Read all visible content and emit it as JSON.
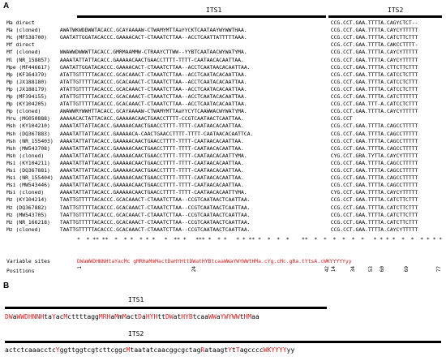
{
  "panel_a": {
    "label": "A",
    "its1_title": "ITS1",
    "its2_title": "ITS2",
    "rows": [
      {
        "name": "Ma direct",
        "its1": "",
        "its2": "CCG.CCT.GAA.TTTTA.CAGYCTCT--"
      },
      {
        "name": "Ma (cloned)",
        "its1": "AWATWKWDDWWTACACC.GCAYAAAAW-CTWAMYMTTAaYYCKTCAATAAYWYWWTHAA.",
        "its2": "CCG.CCT.GAA.TTTTA.CAYCYTTTTT"
      },
      {
        "name": "Mc (MF538700)",
        "its1": "GAATATTGGATACACCC.GAAAACACT-CTAAATCTTAA--ACCTCAATTATTTTTAAA.",
        "its2": "CCG.CCT.GAA.TTTTA.CATCTTCTTT"
      },
      {
        "name": "Mf direct",
        "its1": "",
        "its2": "CCG.CCT.GAA.TTTTA.CAKCCTTTT-"
      },
      {
        "name": "Mf (cloned)",
        "its1": "WWAWWDWWWTTACACC.GMRMAAMMW-CTRAAYCTTWW--YYBTCAATAACWYWATYMA.",
        "its2": "CCG.CCT.GAA.TTTTA.CAYCYTTTTT"
      },
      {
        "name": "Ml (NR_158857)",
        "its1": "AAAATATTATTACACC.GAAAAACAACTGAACCTTTT-TTTT-CAATAACACAATTAA.",
        "its2": "CCG.CCT.GAA.TTTTA.CAYCYTTTTT"
      },
      {
        "name": "Mpe (MF446617)",
        "its1": "GAATATTGGATACACCC.GAAAACACT-CTAAATCTTAA--ACCTCAATAACACAATTAA.",
        "its2": "CCG.CCT.GAA.TTTTA.CTTCTTCTTT"
      },
      {
        "name": "Mp (KF164379)",
        "its1": "ATATTGTTTTTACACCC.GCACAAACT-CTAAATCTTAA--ACCTCAATACACAATTAA.",
        "its2": "CCG.CCT.GAA.TTTTA.CATCCTCTTT"
      },
      {
        "name": "Mp (JX188180)",
        "its1": "ATATTGTTTTTACACCC.GCACAAACT-CTAAATCTTAA--ACCTCAATACACAATTAA.",
        "its2": "CCG.CCT.GAA.TTTTA.CATCCTCTTT"
      },
      {
        "name": "Mp (JX188179)",
        "its1": "ATATTGTTTTTACACCC.GCACAAACT-CTAAATCTTAA--ACCTCAATACACAATTAA.",
        "its2": "CCG.CCT.GAA.TTTTA.CATCCTCTTT"
      },
      {
        "name": "Mp (MF394155)",
        "its1": "ATATTGTTTTTACACCC.GCACAAACT-CTAAATCTTAA--ACCTCAATACACAATTAA.",
        "its2": "CCG.CCT.GAA.TTTTA.CATCTTTTTT"
      },
      {
        "name": "Mp (KY104205)",
        "its1": "ATATTGTTTTTACACCC.GCACAAACT-CTAAATCTTAA--ACCTCAATACACAATTAA.",
        "its2": "CCG.CCT.GAA.TTT-A.CATCCTCTTT"
      },
      {
        "name": "Mp (cloned)",
        "its1": "AWAWWRYWWHTTACACC.GCAYAAAAW-CTWAMYMTTAaYYCYTCAAWWACWYWATYMA.",
        "its2": "CCG.CCT.GAA.TTTTA.CAYCYTTTTT"
      },
      {
        "name": "Mru (MG050888)",
        "its1": "AAAAACACTATTACACC.GAAAAACAACTGAACCTTTT-CCGTCAATAACTCAATTAA.",
        "its2": "CCG.CCT"
      },
      {
        "name": "Msh (KY104210)",
        "its1": "AAAATATTATTACACC.GAAAAACAACTGAACCTTTT-TTTT-CAATAACACAATTAA.",
        "its2": "CCG.CCT.GAA.TTTTA.CAGCCTTTTT"
      },
      {
        "name": "Msh (DQ367883)",
        "its1": "AAAATATTATTACACC.GAAAAACA-CAACTGAACCTTTT-TTTT-CAATAACACAATTCA.",
        "its2": "CCG.CCT.GAA.TTTTA.CAGCCTTTTT"
      },
      {
        "name": "Msh (NR_155403)",
        "its1": "AAAATATTATTACACC.GAAAAACAACTGAACCTTTT-TTTT-CAATAACACAATTAA.",
        "its2": "CCG.CCT.GAA.TTTTA.CAGCCTTTTT"
      },
      {
        "name": "Msh (MW543708)",
        "its1": "AAAATATTATTACACC.GAAAAACAACTGAACCTTTT-TTTT-CAATAACACAATTAA.",
        "its2": "CCG.CCT.GAA.TTTTA.CAGCCTTTTT"
      },
      {
        "name": "Msh (cloned)",
        "its1": "AAAATATTATTACACC.GAAAAACAACTGAACCTTTT-TTTT-CAATAACACAATTYMA.",
        "its2": "CYG.CCT.GRA.TYTTA.CAYCYTTTTT"
      },
      {
        "name": "Msi (KY104211)",
        "its1": "AAAATATTATTACACC.GAAAAACAACTGAACCTTTT-TTTT-CAATAACACAATTAA.",
        "its2": "CCG.CCT.GAA.TTTTA.CAGCCTTTTT"
      },
      {
        "name": "Msi (DQ367881)",
        "its1": "AAAATATTATTACACC.GAAAAACAACTGAACCTTTT-TTTT-CAATAACACAATTAA.",
        "its2": "CCG.CCT.GAA.TTTTA.CAGCCTTTTT"
      },
      {
        "name": "Msi (NR_155404)",
        "its1": "AAAATATTATTACACC.GAAAAACAACTGAACCTTTT-TTTT-CAATAACACAATTAA.",
        "its2": "CCG.CCT.GAA.TTTTA.CAGCCTTTTT"
      },
      {
        "name": "Msi (MW543446)",
        "its1": "AAAATATTATTACACC.GAAAAACAACTGAACCTTTT-TTTT-CAATAACACAATTAA.",
        "its2": "CCG.CCT.GAA.TTTTA.CAGCCTTTTT"
      },
      {
        "name": "Msi (cloned)",
        "its1": "AAAATATTATTACACC.GAAAAACAACTGAACCTTTT-TTTT-CAATAACACAATTYMA.",
        "its2": "CYG.CCT.GAA.TTTTA.CAYCYTTTTT"
      },
      {
        "name": "Mz (KY104214)",
        "its1": "TAATTGTTTTTACACCC.GCACAAACT-CTAAATCTTAA--CCGTCAATAACTCAATTAA.",
        "its2": "CCG.CCT.GAA.TTTTA.CATCTTCTTT"
      },
      {
        "name": "Mz (DQ367882)",
        "its1": "TAATTGTTTTTACACCC.GCACAAACT-CTAAATCTTAA--CCGTCAATAACTCAATTAA.",
        "its2": "CCG.CCT.GAA.TTTTA.CATCTTCTTT"
      },
      {
        "name": "Mz (MW543705)",
        "its1": "TAATTGTTTTTACACCC.GCACAAACT-CTAAATCTTAA--CCGTCAATAACTCAATTAA.",
        "its2": "CCG.CCT.GAA.TTTTA.CATCTTCTTT"
      },
      {
        "name": "Mz (NR_166218)",
        "its1": "TAATTGTTTTTACACCC.GCACAAACT-CTAAATCTTAA--CCGTCAATAACTCAATTAA.",
        "its2": "CCG.CCT.GAA.TTTTA.CATCTTCTTT"
      },
      {
        "name": "Mz (cloned)",
        "its1": "TAATTGTTTTTACACCC.GCACAAACT-CTAAATCTTAA--CCGTCAATAACTCAATTAA.",
        "its2": "CCG.CCT.GAA.TTTTA.CAYCYTTTTT"
      }
    ],
    "consensus_marks": "*  * ** **  *  * *  * * *   *  ** *   *** *  * *   * * ** *  *  *  *    **  *  *  *  *  *  *   * * * *  *  *  * * * *",
    "variable_sites_label": "Variable sites",
    "variable_sites_seq": "DWaWWDHNNHtaYacMc gMRHaMmMactDaHYHttDWatHYBtcaaWWaYWYWWtHMa.cYg.cMc.gRa.tYtsA.cWKYYYYYyy",
    "positions_label": "Positions",
    "positions_its1": [
      "1",
      "24",
      "42"
    ],
    "positions_its2": [
      "14",
      "34",
      "53",
      "60",
      "69",
      "77"
    ]
  },
  "panel_b": {
    "label": "B",
    "its1_title": "ITS1",
    "its1_seq": "DWaWWDHNNHtaYacMcttttaggMRHaMmMactDaHYHttDWatHYBtcaaWWaYWYWWtHMaa",
    "its2_title": "ITS2",
    "its2_seq": "actctcaaacctcYggttggtcgtcttcggcMtaatatcaacggcgctagRataagtYtTagccccWKYYYYyy"
  },
  "colors": {
    "variable_highlight": "#d21f1f",
    "text": "#000000"
  }
}
